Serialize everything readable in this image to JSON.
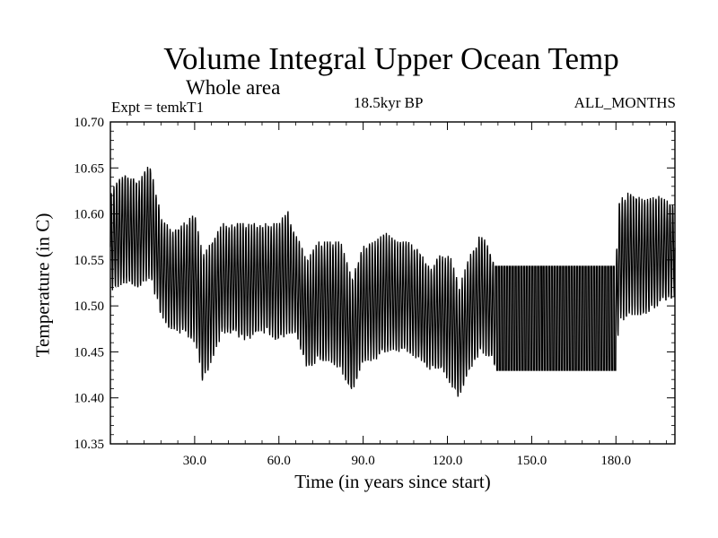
{
  "chart_data": {
    "type": "line",
    "title": "Volume Integral Upper Ocean Temp",
    "subtitle": "Whole area",
    "experiment": "Expt = temkT1",
    "period": "18.5kyr BP",
    "months": "ALL_MONTHS",
    "xlabel": "Time (in years since start)",
    "ylabel": "Temperature (in C)",
    "xlim": [
      0,
      201
    ],
    "ylim": [
      10.35,
      10.7
    ],
    "xticks": [
      30,
      60,
      90,
      120,
      150,
      180
    ],
    "xtick_labels": [
      "30.0",
      "60.0",
      "90.0",
      "120.0",
      "150.0",
      "180.0"
    ],
    "yticks": [
      10.35,
      10.4,
      10.45,
      10.5,
      10.55,
      10.6,
      10.65,
      10.7
    ],
    "ytick_labels": [
      "10.35",
      "10.40",
      "10.45",
      "10.50",
      "10.55",
      "10.60",
      "10.65",
      "10.70"
    ],
    "series": [
      {
        "name": "Temperature",
        "color": "#000000",
        "note": "approximate annual-cycle envelope read from the plot (min/max per year)",
        "envelope": {
          "x": [
            0,
            5,
            10,
            14,
            18,
            22,
            26,
            30,
            33,
            36,
            40,
            44,
            48,
            52,
            56,
            60,
            63,
            66,
            70,
            74,
            78,
            82,
            86,
            90,
            94,
            98,
            102,
            106,
            110,
            114,
            118,
            122,
            124,
            128,
            132,
            136,
            137,
            180,
            181,
            185,
            190,
            195,
            201
          ],
          "min": [
            10.515,
            10.525,
            10.52,
            10.53,
            10.49,
            10.47,
            10.47,
            10.46,
            10.415,
            10.44,
            10.47,
            10.47,
            10.46,
            10.47,
            10.47,
            10.46,
            10.47,
            10.47,
            10.43,
            10.44,
            10.44,
            10.43,
            10.405,
            10.44,
            10.44,
            10.45,
            10.45,
            10.45,
            10.44,
            10.43,
            10.43,
            10.41,
            10.4,
            10.43,
            10.45,
            10.44,
            10.43,
            10.43,
            10.48,
            10.49,
            10.49,
            10.5,
            10.51
          ],
          "max": [
            10.625,
            10.645,
            10.635,
            10.655,
            10.6,
            10.58,
            10.59,
            10.6,
            10.555,
            10.57,
            10.59,
            10.59,
            10.59,
            10.59,
            10.59,
            10.59,
            10.605,
            10.58,
            10.55,
            10.57,
            10.57,
            10.57,
            10.53,
            10.565,
            10.57,
            10.58,
            10.57,
            10.57,
            10.56,
            10.54,
            10.56,
            10.55,
            10.52,
            10.555,
            10.58,
            10.555,
            10.543,
            10.543,
            10.615,
            10.625,
            10.615,
            10.62,
            10.61
          ]
        }
      }
    ]
  }
}
